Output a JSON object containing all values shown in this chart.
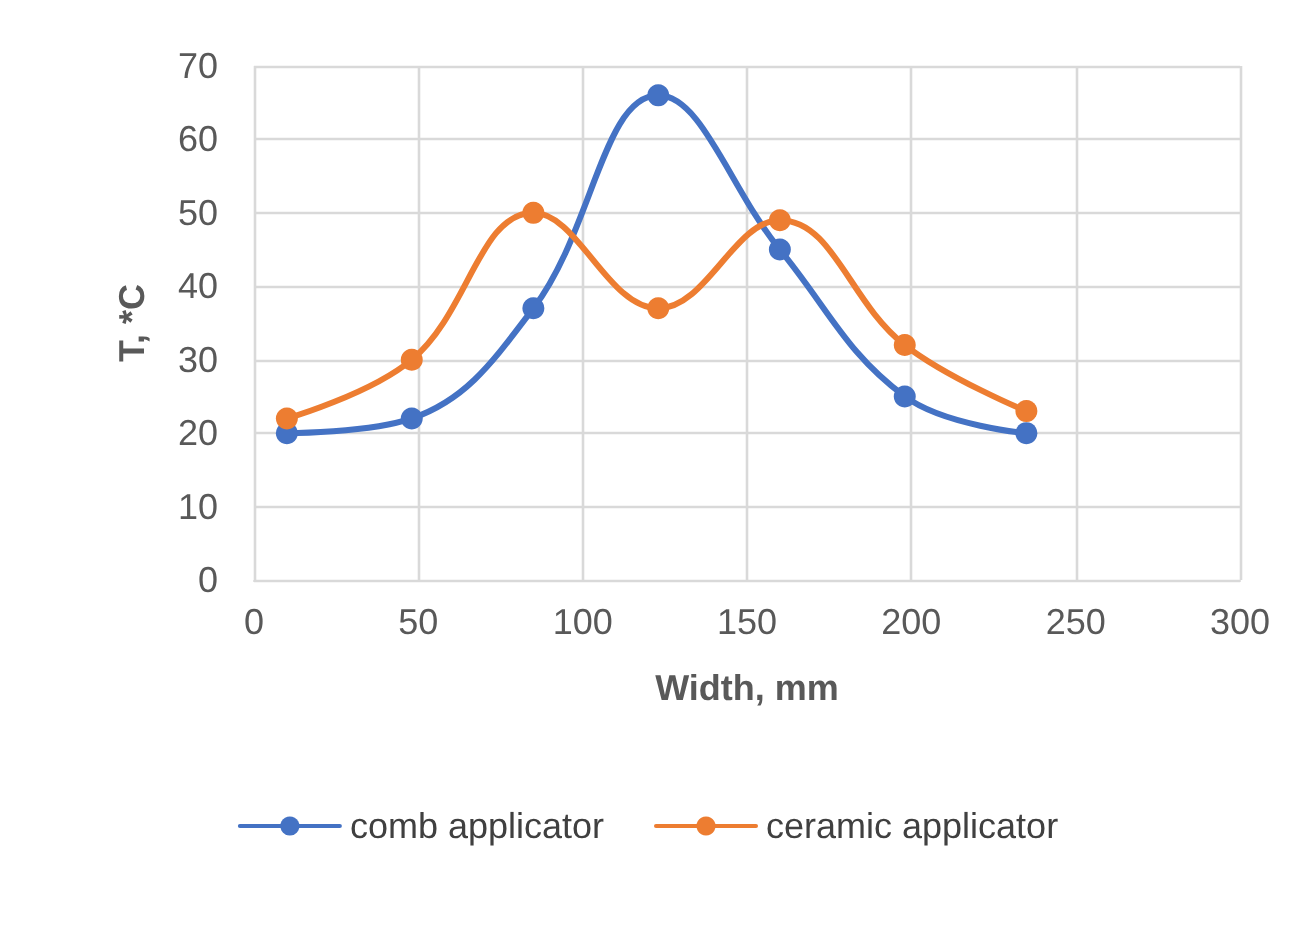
{
  "chart_data": {
    "type": "line",
    "xlabel": "Width, mm",
    "ylabel": "T, *C",
    "x": [
      10,
      48,
      85,
      123,
      160,
      198,
      235
    ],
    "series": [
      {
        "name": "comb applicator",
        "color": "#4472c4",
        "values": [
          20,
          22,
          37,
          66,
          45,
          25,
          20
        ]
      },
      {
        "name": "ceramic applicator",
        "color": "#ed7d31",
        "values": [
          22,
          30,
          50,
          37,
          49,
          32,
          23
        ]
      }
    ],
    "xlim": [
      0,
      300
    ],
    "xticks": [
      0,
      50,
      100,
      150,
      200,
      250,
      300
    ],
    "ylim": [
      0,
      70
    ],
    "yticks": [
      0,
      10,
      20,
      30,
      40,
      50,
      60,
      70
    ],
    "grid": true,
    "legend": "bottom",
    "marker": "circle",
    "line_style": "solid"
  }
}
